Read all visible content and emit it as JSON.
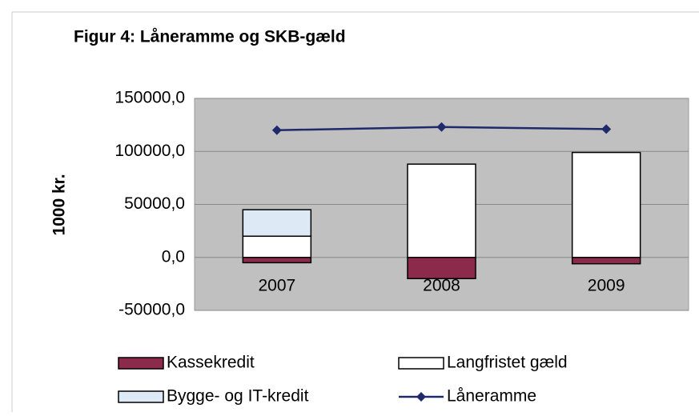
{
  "chart_data": {
    "type": "bar",
    "title": "Figur 4: Låneramme og SKB-gæld",
    "ylabel": "1000 kr.",
    "categories": [
      "2007",
      "2008",
      "2009"
    ],
    "series": [
      {
        "name": "Kassekredit",
        "color": "#8b2a4a",
        "values": [
          -5000,
          -20000,
          -6000
        ]
      },
      {
        "name": "Langfristet gæld",
        "color": "#ffffff",
        "values": [
          20000,
          88000,
          99000
        ]
      },
      {
        "name": "Bygge- og IT-kredit",
        "color": "#dde9f5",
        "values": [
          25000,
          0,
          0
        ]
      },
      {
        "name": "Låneramme",
        "type": "line",
        "color": "#1f2a6b",
        "values": [
          120000,
          123000,
          121000
        ]
      }
    ],
    "ylim": [
      -50000,
      150000
    ],
    "yticks": [
      {
        "value": -50000,
        "label": "-50000,0"
      },
      {
        "value": 0,
        "label": "0,0"
      },
      {
        "value": 50000,
        "label": "50000,0"
      },
      {
        "value": 100000,
        "label": "100000,0"
      },
      {
        "value": 150000,
        "label": "150000,0"
      }
    ],
    "grid": true
  }
}
